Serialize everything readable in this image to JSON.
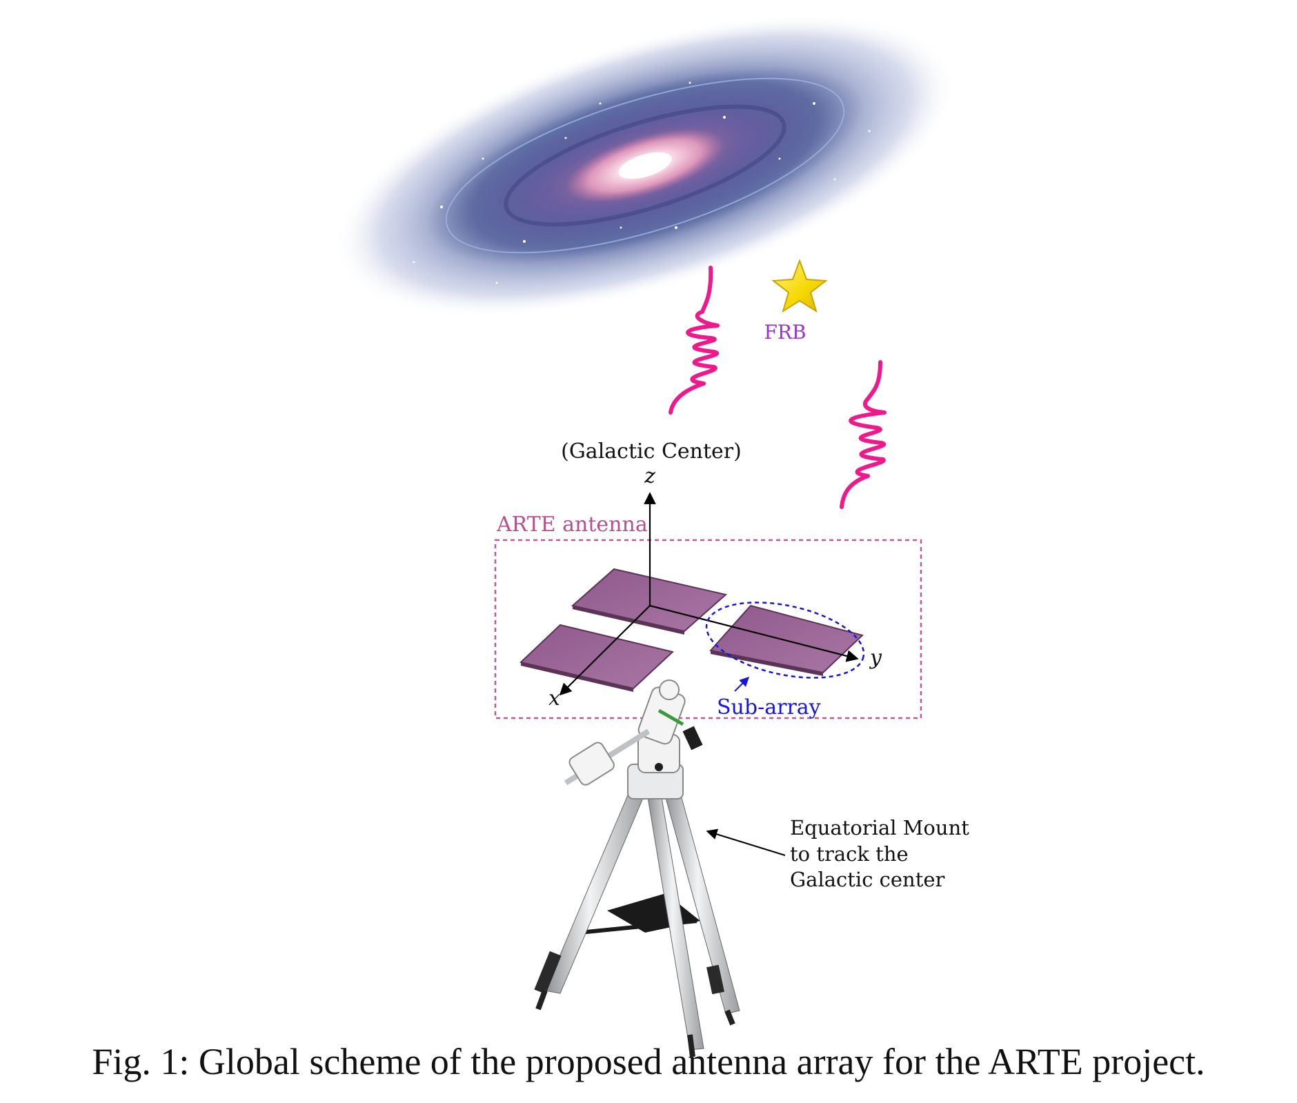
{
  "labels": {
    "frb": "FRB",
    "galactic_center": "(Galactic Center)",
    "axis_z": "z",
    "axis_x": "x",
    "axis_y": "y",
    "arte_antenna": "ARTE antenna",
    "sub_array": "Sub-array",
    "mount_line1": "Equatorial Mount",
    "mount_line2": "to track the",
    "mount_line3": "Galactic center"
  },
  "caption": "Fig. 1: Global scheme of the proposed antenna array for the ARTE project.",
  "colors": {
    "wave": "#ee1a8c",
    "frb_text": "#9b30d9",
    "star": "#f5d800",
    "panel": "#9a6596",
    "panel_edge": "#5a3357",
    "antenna_box": "#c0569a",
    "sub_array": "#1515e0",
    "galaxy_core": "#f7c6d8",
    "galaxy_arm": "#4a5fa8"
  }
}
